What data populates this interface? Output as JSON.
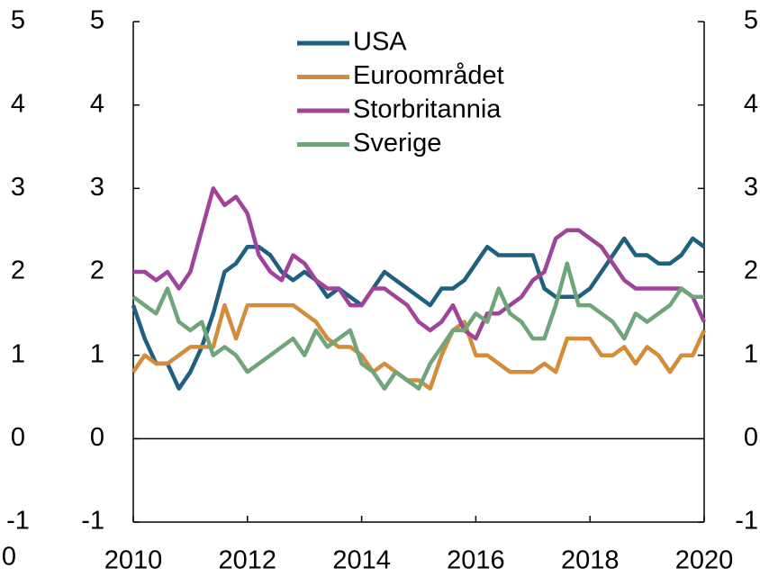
{
  "chart_data": {
    "type": "line",
    "annotation": "0",
    "x": [
      2010.0,
      2010.2,
      2010.4,
      2010.6,
      2010.8,
      2011.0,
      2011.2,
      2011.4,
      2011.6,
      2011.8,
      2012.0,
      2012.2,
      2012.4,
      2012.6,
      2012.8,
      2013.0,
      2013.2,
      2013.4,
      2013.6,
      2013.8,
      2014.0,
      2014.2,
      2014.4,
      2014.6,
      2014.8,
      2015.0,
      2015.2,
      2015.4,
      2015.6,
      2015.8,
      2016.0,
      2016.2,
      2016.4,
      2016.6,
      2016.8,
      2017.0,
      2017.2,
      2017.4,
      2017.6,
      2017.8,
      2018.0,
      2018.2,
      2018.4,
      2018.6,
      2018.8,
      2019.0,
      2019.2,
      2019.4,
      2019.6,
      2019.8,
      2020.0
    ],
    "series": [
      {
        "name": "USA",
        "color": "#1f5f80",
        "values": [
          1.6,
          1.2,
          0.9,
          0.9,
          0.6,
          0.8,
          1.1,
          1.5,
          2.0,
          2.1,
          2.3,
          2.3,
          2.2,
          2.0,
          1.9,
          2.0,
          1.9,
          1.7,
          1.8,
          1.7,
          1.6,
          1.8,
          2.0,
          1.9,
          1.8,
          1.7,
          1.6,
          1.8,
          1.8,
          1.9,
          2.1,
          2.3,
          2.2,
          2.2,
          2.2,
          2.2,
          1.8,
          1.7,
          1.7,
          1.7,
          1.8,
          2.0,
          2.2,
          2.4,
          2.2,
          2.2,
          2.1,
          2.1,
          2.2,
          2.4,
          2.3
        ]
      },
      {
        "name": "Euroområdet",
        "color": "#d48c3a",
        "values": [
          0.8,
          1.0,
          0.9,
          0.9,
          1.0,
          1.1,
          1.1,
          1.1,
          1.6,
          1.2,
          1.6,
          1.6,
          1.6,
          1.6,
          1.6,
          1.5,
          1.4,
          1.2,
          1.1,
          1.1,
          1.0,
          0.8,
          0.9,
          0.8,
          0.7,
          0.7,
          0.6,
          1.0,
          1.3,
          1.4,
          1.0,
          1.0,
          0.9,
          0.8,
          0.8,
          0.8,
          0.9,
          0.8,
          1.2,
          1.2,
          1.2,
          1.0,
          1.0,
          1.1,
          0.9,
          1.1,
          1.0,
          0.8,
          1.0,
          1.0,
          1.3
        ]
      },
      {
        "name": "Storbritannia",
        "color": "#a0449b",
        "values": [
          2.0,
          2.0,
          1.9,
          2.0,
          1.8,
          2.0,
          2.5,
          3.0,
          2.8,
          2.9,
          2.7,
          2.2,
          2.0,
          1.9,
          2.2,
          2.1,
          1.9,
          1.8,
          1.8,
          1.6,
          1.6,
          1.8,
          1.8,
          1.7,
          1.6,
          1.4,
          1.3,
          1.4,
          1.6,
          1.3,
          1.2,
          1.5,
          1.5,
          1.6,
          1.7,
          1.9,
          2.0,
          2.4,
          2.5,
          2.5,
          2.4,
          2.3,
          2.1,
          1.9,
          1.8,
          1.8,
          1.8,
          1.8,
          1.8,
          1.7,
          1.4
        ]
      },
      {
        "name": "Sverige",
        "color": "#6fa57a",
        "values": [
          1.7,
          1.6,
          1.5,
          1.8,
          1.4,
          1.3,
          1.4,
          1.0,
          1.1,
          1.0,
          0.8,
          0.9,
          1.0,
          1.1,
          1.2,
          1.0,
          1.3,
          1.1,
          1.2,
          1.3,
          0.9,
          0.8,
          0.6,
          0.8,
          0.7,
          0.6,
          0.9,
          1.1,
          1.3,
          1.3,
          1.5,
          1.4,
          1.8,
          1.5,
          1.4,
          1.2,
          1.2,
          1.6,
          2.1,
          1.6,
          1.6,
          1.5,
          1.4,
          1.2,
          1.5,
          1.4,
          1.5,
          1.6,
          1.8,
          1.7,
          1.7
        ]
      }
    ],
    "xlim": [
      2010,
      2020
    ],
    "xticks": [
      2010,
      2012,
      2014,
      2016,
      2018,
      2020
    ],
    "ylim": [
      -1,
      5
    ],
    "yticks": [
      -1,
      0,
      1,
      2,
      3,
      4,
      5
    ],
    "y2lim": [
      -1,
      5
    ],
    "y2ticks": [
      -1,
      0,
      1,
      2,
      3,
      4,
      5
    ],
    "zero_line": true,
    "legend": "top"
  }
}
